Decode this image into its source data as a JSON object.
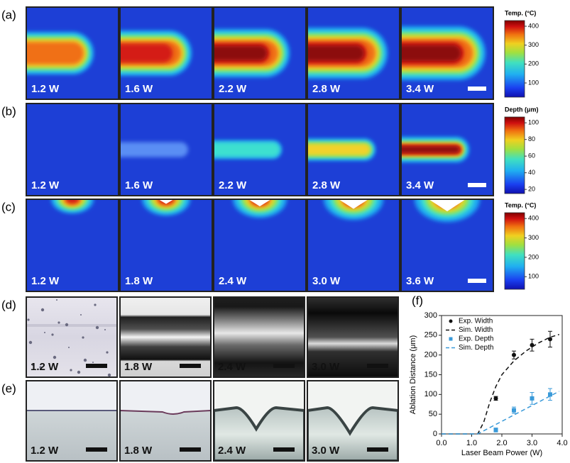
{
  "panels": {
    "a": {
      "label": "(a)",
      "powers": [
        "1.2 W",
        "1.6 W",
        "2.2 W",
        "2.8 W",
        "3.4 W"
      ],
      "colorbar": {
        "title": "Temp. (°C)",
        "lim": [
          25,
          430
        ],
        "ticks": [
          100,
          200,
          300,
          400
        ]
      }
    },
    "b": {
      "label": "(b)",
      "powers": [
        "1.2 W",
        "1.6 W",
        "2.2 W",
        "2.8 W",
        "3.4 W"
      ],
      "colorbar": {
        "title": "Depth (μm)",
        "lim": [
          15,
          107
        ],
        "ticks": [
          20,
          40,
          60,
          80,
          100
        ]
      }
    },
    "c": {
      "label": "(c)",
      "powers": [
        "1.2 W",
        "1.8 W",
        "2.4 W",
        "3.0 W",
        "3.6 W"
      ],
      "colorbar": {
        "title": "Temp. (°C)",
        "lim": [
          35,
          430
        ],
        "ticks": [
          100,
          200,
          300,
          400
        ]
      }
    },
    "d": {
      "label": "(d)",
      "powers": [
        "1.2 W",
        "1.8 W",
        "2.4 W",
        "3.0 W"
      ]
    },
    "e": {
      "label": "(e)",
      "powers": [
        "1.2 W",
        "1.8 W",
        "2.4 W",
        "3.0 W"
      ]
    }
  },
  "chart_data": {
    "type": "line",
    "panel_label": "(f)",
    "x_label": "Laser Beam Power (W)",
    "y_label": "Ablation Distance (μm)",
    "xlim": [
      0,
      4
    ],
    "ylim": [
      0,
      300
    ],
    "xticks": [
      {
        "value": 0,
        "label": "0.0"
      },
      {
        "value": 1,
        "label": "1.0"
      },
      {
        "value": 2,
        "label": "2.0"
      },
      {
        "value": 3,
        "label": "3.0"
      },
      {
        "value": 4,
        "label": "4.0"
      }
    ],
    "yticks": [
      0,
      50,
      100,
      150,
      200,
      250,
      300
    ],
    "series": [
      {
        "name": "Exp. Width",
        "kind": "points",
        "marker": "circle",
        "color": "#111111",
        "x": [
          1.8,
          2.4,
          3.0,
          3.6
        ],
        "values": [
          90,
          200,
          225,
          240
        ],
        "errors": [
          5,
          10,
          15,
          20
        ]
      },
      {
        "name": "Sim. Width",
        "kind": "dashed",
        "color": "#111111",
        "x": [
          0,
          1.2,
          1.4,
          1.6,
          1.8,
          2.0,
          2.4,
          2.8,
          3.2,
          3.6,
          3.9
        ],
        "values": [
          0,
          0,
          30,
          80,
          120,
          150,
          185,
          210,
          230,
          245,
          252
        ]
      },
      {
        "name": "Exp. Depth",
        "kind": "points",
        "marker": "square",
        "color": "#3a9ad9",
        "x": [
          1.8,
          2.4,
          3.0,
          3.6
        ],
        "values": [
          10,
          60,
          90,
          100
        ],
        "errors": [
          5,
          8,
          15,
          15
        ]
      },
      {
        "name": "Sim. Depth",
        "kind": "dashed",
        "color": "#3a9ad9",
        "x": [
          0,
          1.2,
          3.9
        ],
        "values": [
          0,
          0,
          108
        ]
      }
    ]
  }
}
